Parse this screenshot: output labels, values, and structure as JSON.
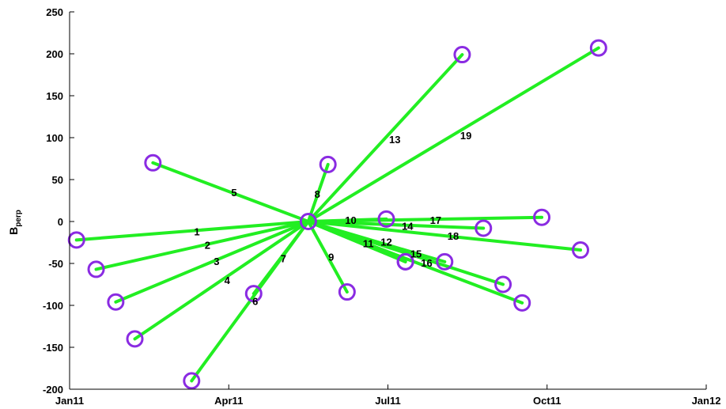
{
  "chart_data": {
    "type": "scatter",
    "description_note": "",
    "title": "",
    "xlabel": "",
    "ylabel_main": "B",
    "ylabel_sub": "perp",
    "xlim": [
      0,
      12
    ],
    "ylim": [
      -200,
      250
    ],
    "x_unit": "months since 2011-01-01",
    "xticks": [
      {
        "value": 0,
        "label": "Jan11"
      },
      {
        "value": 3,
        "label": "Apr11"
      },
      {
        "value": 6,
        "label": "Jul11"
      },
      {
        "value": 9,
        "label": "Oct11"
      },
      {
        "value": 12,
        "label": "Jan12"
      }
    ],
    "yticks": [
      -200,
      -150,
      -100,
      -50,
      0,
      50,
      100,
      150,
      200,
      250
    ],
    "grid": false,
    "master": {
      "x": 4.5,
      "y": 0
    },
    "colors": {
      "line": "#22ee22",
      "marker": "#8a2be2",
      "axis": "#000000"
    },
    "slaves": [
      {
        "id": "1",
        "x": 0.13,
        "y": -22
      },
      {
        "id": "2",
        "x": 0.5,
        "y": -57
      },
      {
        "id": "3",
        "x": 0.87,
        "y": -96
      },
      {
        "id": "4",
        "x": 1.23,
        "y": -140
      },
      {
        "id": "5",
        "x": 1.57,
        "y": 70
      },
      {
        "id": "6",
        "x": 3.47,
        "y": -86
      },
      {
        "id": "7",
        "x": 2.3,
        "y": -190
      },
      {
        "id": "8",
        "x": 4.87,
        "y": 68
      },
      {
        "id": "9",
        "x": 5.23,
        "y": -84
      },
      {
        "id": "10",
        "x": 5.97,
        "y": 3
      },
      {
        "id": "11",
        "x": 6.33,
        "y": -48
      },
      {
        "id": "12",
        "x": 6.33,
        "y": -48
      },
      {
        "id": "13",
        "x": 7.4,
        "y": 199
      },
      {
        "id": "14",
        "x": 7.8,
        "y": -8
      },
      {
        "id": "15",
        "x": 7.07,
        "y": -48
      },
      {
        "id": "16",
        "x": 8.17,
        "y": -75
      },
      {
        "id": "17",
        "x": 8.9,
        "y": 5
      },
      {
        "id": "18",
        "x": 9.63,
        "y": -34
      },
      {
        "id": "19",
        "x": 9.97,
        "y": 207
      },
      {
        "id": "20",
        "x": 8.53,
        "y": -97
      }
    ],
    "edge_labels": [
      {
        "text": "1",
        "x": 2.4,
        "y": -12
      },
      {
        "text": "2",
        "x": 2.6,
        "y": -28
      },
      {
        "text": "3",
        "x": 2.77,
        "y": -47
      },
      {
        "text": "4",
        "x": 2.97,
        "y": -70
      },
      {
        "text": "5",
        "x": 3.1,
        "y": 35
      },
      {
        "text": "6",
        "x": 3.5,
        "y": -95
      },
      {
        "text": "7",
        "x": 4.03,
        "y": -44
      },
      {
        "text": "8",
        "x": 4.67,
        "y": 33
      },
      {
        "text": "9",
        "x": 4.93,
        "y": -42
      },
      {
        "text": "10",
        "x": 5.3,
        "y": 2
      },
      {
        "text": "11",
        "x": 5.63,
        "y": -26
      },
      {
        "text": "12",
        "x": 5.97,
        "y": -24
      },
      {
        "text": "13",
        "x": 6.13,
        "y": 98
      },
      {
        "text": "14",
        "x": 6.37,
        "y": -5
      },
      {
        "text": "15",
        "x": 6.53,
        "y": -38
      },
      {
        "text": "16",
        "x": 6.73,
        "y": -49
      },
      {
        "text": "17",
        "x": 6.9,
        "y": 2
      },
      {
        "text": "18",
        "x": 7.23,
        "y": -17
      },
      {
        "text": "19",
        "x": 7.47,
        "y": 103
      }
    ]
  }
}
